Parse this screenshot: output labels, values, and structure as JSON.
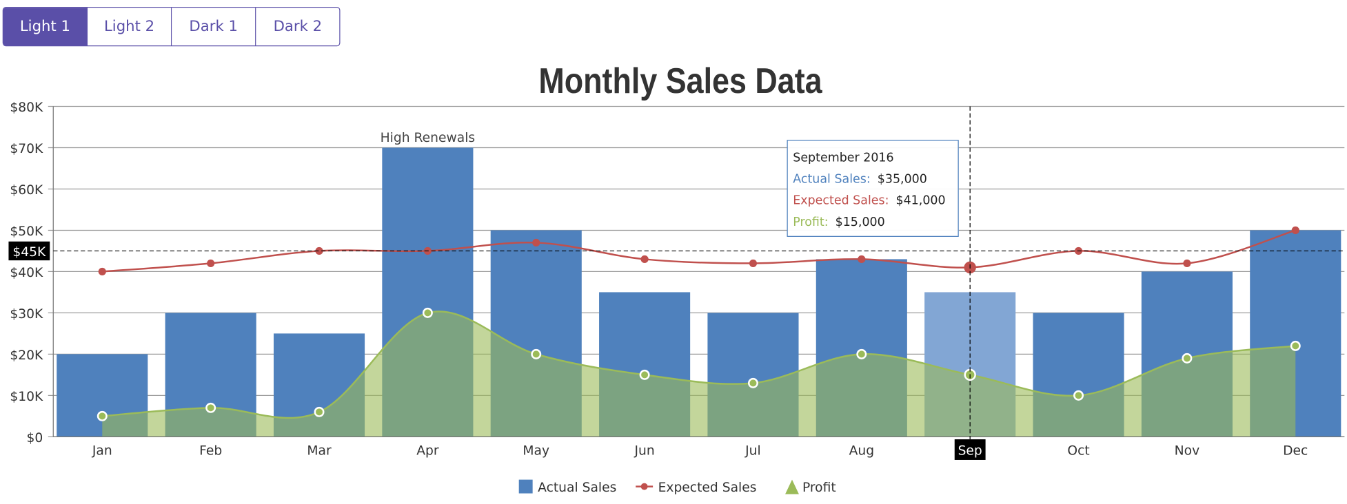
{
  "theme_buttons": [
    {
      "label": "Light 1",
      "active": true
    },
    {
      "label": "Light 2",
      "active": false
    },
    {
      "label": "Dark 1",
      "active": false
    },
    {
      "label": "Dark 2",
      "active": false
    }
  ],
  "chart_data": {
    "type": "bar",
    "title": "Monthly Sales Data",
    "categories": [
      "Jan",
      "Feb",
      "Mar",
      "Apr",
      "May",
      "Jun",
      "Jul",
      "Aug",
      "Sep",
      "Oct",
      "Nov",
      "Dec"
    ],
    "ylim": [
      0,
      80000
    ],
    "yticks": [
      "$0",
      "$10K",
      "$20K",
      "$30K",
      "$40K",
      "$50K",
      "$60K",
      "$70K",
      "$80K"
    ],
    "grid": true,
    "legend_position": "bottom",
    "series": [
      {
        "name": "Actual Sales",
        "type": "column",
        "color": "#4f81bd",
        "values": [
          20000,
          30000,
          25000,
          70000,
          50000,
          35000,
          30000,
          43000,
          35000,
          30000,
          40000,
          50000
        ]
      },
      {
        "name": "Expected Sales",
        "type": "spline",
        "color": "#c0504d",
        "values": [
          40000,
          42000,
          45000,
          45000,
          47000,
          43000,
          42000,
          43000,
          41000,
          45000,
          42000,
          50000
        ]
      },
      {
        "name": "Profit",
        "type": "splineArea",
        "color": "#9bbb59",
        "values": [
          5000,
          7000,
          6000,
          30000,
          20000,
          15000,
          13000,
          20000,
          15000,
          10000,
          19000,
          22000
        ]
      }
    ],
    "annotations": [
      {
        "category": "Apr",
        "text": "High Renewals"
      }
    ],
    "crosshair": {
      "x_label": "Sep",
      "y_label": "$45K"
    },
    "highlighted_category": "Sep",
    "tooltip": {
      "title": "September 2016",
      "rows": [
        {
          "label": "Actual Sales:",
          "value": "$35,000",
          "color": "#4f81bd"
        },
        {
          "label": "Expected Sales:",
          "value": "$41,000",
          "color": "#c0504d"
        },
        {
          "label": "Profit:",
          "value": "$15,000",
          "color": "#9bbb59"
        }
      ]
    }
  }
}
